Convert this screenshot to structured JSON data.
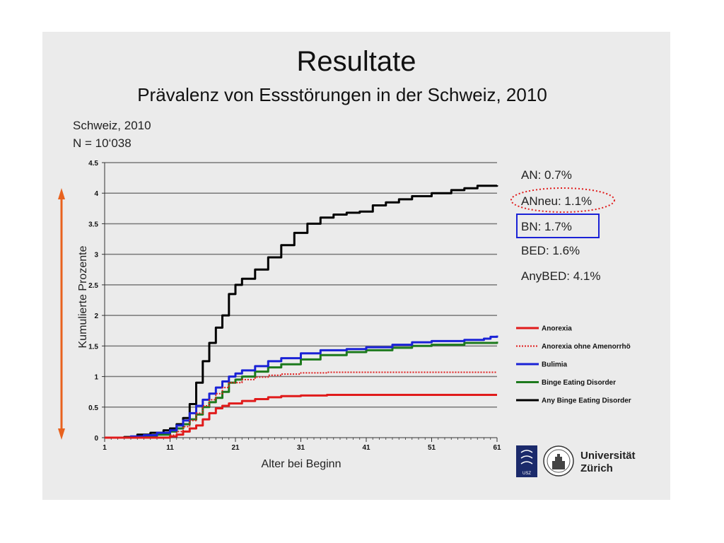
{
  "slide": {
    "title": "Resultate",
    "subtitle": "Prävalenz von Essstörungen in der Schweiz, 2010",
    "meta_line1": "Schweiz, 2010",
    "meta_line2": "N = 10‘038",
    "prevalence": [
      "AN: 0.7%",
      "ANneu: 1.1%",
      "BN: 1.7%",
      "BED: 1.6%",
      "AnyBED: 4.1%"
    ],
    "logos": [
      "USZ",
      "Universität",
      "Zürich"
    ]
  },
  "colors": {
    "anorexia": "#e01b1b",
    "anorexia_no_amenorrhea": "#e01b1b",
    "bulimia": "#1a22d6",
    "bed": "#1d7a1d",
    "any_bed": "#000000",
    "axis_arrow": "#e8621e",
    "ellipse": "#e01b1b",
    "box": "#1a22d6",
    "logo_usz": "#1b2a6b"
  },
  "chart_data": {
    "type": "line",
    "xlabel": "Alter bei Beginn",
    "ylabel": "Kumulierte Prozente",
    "xlim": [
      1,
      61
    ],
    "ylim": [
      0,
      4.5
    ],
    "xticks": [
      1,
      11,
      21,
      31,
      41,
      51,
      61
    ],
    "yticks": [
      0,
      0.5,
      1,
      1.5,
      2,
      2.5,
      3,
      3.5,
      4,
      4.5
    ],
    "ytick_labels": [
      "0",
      "0.5",
      "1",
      "1.5",
      "2",
      "2.5",
      "3",
      "3.5",
      "4",
      "4.5"
    ],
    "grid": true,
    "legend_position": "right",
    "series": [
      {
        "name": "Anorexia",
        "style": "solid",
        "points": [
          [
            1,
            0
          ],
          [
            10,
            0
          ],
          [
            11,
            0.02
          ],
          [
            12,
            0.05
          ],
          [
            13,
            0.1
          ],
          [
            14,
            0.15
          ],
          [
            15,
            0.2
          ],
          [
            16,
            0.3
          ],
          [
            17,
            0.4
          ],
          [
            18,
            0.48
          ],
          [
            19,
            0.52
          ],
          [
            20,
            0.56
          ],
          [
            22,
            0.6
          ],
          [
            24,
            0.63
          ],
          [
            26,
            0.66
          ],
          [
            28,
            0.68
          ],
          [
            31,
            0.69
          ],
          [
            35,
            0.7
          ],
          [
            61,
            0.7
          ]
        ]
      },
      {
        "name": "Anorexia ohne Amenorrhö",
        "style": "dotted",
        "points": [
          [
            1,
            0
          ],
          [
            10,
            0
          ],
          [
            11,
            0.04
          ],
          [
            12,
            0.1
          ],
          [
            13,
            0.18
          ],
          [
            14,
            0.28
          ],
          [
            15,
            0.4
          ],
          [
            16,
            0.52
          ],
          [
            17,
            0.62
          ],
          [
            18,
            0.72
          ],
          [
            19,
            0.82
          ],
          [
            20,
            0.9
          ],
          [
            22,
            0.95
          ],
          [
            24,
            0.99
          ],
          [
            26,
            1.02
          ],
          [
            28,
            1.04
          ],
          [
            31,
            1.06
          ],
          [
            35,
            1.07
          ],
          [
            61,
            1.07
          ]
        ]
      },
      {
        "name": "Bulimia",
        "style": "solid",
        "points": [
          [
            1,
            0
          ],
          [
            5,
            0.02
          ],
          [
            7,
            0.04
          ],
          [
            9,
            0.08
          ],
          [
            11,
            0.12
          ],
          [
            12,
            0.2
          ],
          [
            13,
            0.28
          ],
          [
            14,
            0.4
          ],
          [
            15,
            0.52
          ],
          [
            16,
            0.62
          ],
          [
            17,
            0.72
          ],
          [
            18,
            0.82
          ],
          [
            19,
            0.92
          ],
          [
            20,
            1.0
          ],
          [
            21,
            1.05
          ],
          [
            22,
            1.1
          ],
          [
            24,
            1.17
          ],
          [
            26,
            1.25
          ],
          [
            28,
            1.3
          ],
          [
            31,
            1.38
          ],
          [
            34,
            1.43
          ],
          [
            38,
            1.45
          ],
          [
            41,
            1.48
          ],
          [
            45,
            1.52
          ],
          [
            48,
            1.56
          ],
          [
            51,
            1.58
          ],
          [
            56,
            1.6
          ],
          [
            59,
            1.62
          ],
          [
            60,
            1.65
          ],
          [
            61,
            1.67
          ]
        ]
      },
      {
        "name": "Binge Eating Disorder",
        "style": "solid",
        "points": [
          [
            1,
            0
          ],
          [
            5,
            0.01
          ],
          [
            7,
            0.03
          ],
          [
            9,
            0.05
          ],
          [
            11,
            0.1
          ],
          [
            12,
            0.15
          ],
          [
            13,
            0.22
          ],
          [
            14,
            0.3
          ],
          [
            15,
            0.38
          ],
          [
            16,
            0.5
          ],
          [
            17,
            0.58
          ],
          [
            18,
            0.65
          ],
          [
            19,
            0.75
          ],
          [
            20,
            0.9
          ],
          [
            21,
            0.95
          ],
          [
            22,
            1.0
          ],
          [
            24,
            1.08
          ],
          [
            26,
            1.15
          ],
          [
            28,
            1.2
          ],
          [
            31,
            1.28
          ],
          [
            34,
            1.35
          ],
          [
            38,
            1.4
          ],
          [
            41,
            1.43
          ],
          [
            45,
            1.47
          ],
          [
            48,
            1.5
          ],
          [
            51,
            1.52
          ],
          [
            56,
            1.55
          ],
          [
            61,
            1.57
          ]
        ]
      },
      {
        "name": "Any Binge Eating Disorder",
        "style": "solid",
        "points": [
          [
            1,
            0
          ],
          [
            4,
            0.01
          ],
          [
            6,
            0.05
          ],
          [
            8,
            0.08
          ],
          [
            10,
            0.12
          ],
          [
            11,
            0.15
          ],
          [
            12,
            0.22
          ],
          [
            13,
            0.32
          ],
          [
            14,
            0.55
          ],
          [
            15,
            0.9
          ],
          [
            16,
            1.25
          ],
          [
            17,
            1.55
          ],
          [
            18,
            1.8
          ],
          [
            19,
            2.0
          ],
          [
            20,
            2.35
          ],
          [
            21,
            2.5
          ],
          [
            22,
            2.6
          ],
          [
            24,
            2.75
          ],
          [
            26,
            2.95
          ],
          [
            28,
            3.15
          ],
          [
            30,
            3.35
          ],
          [
            32,
            3.5
          ],
          [
            34,
            3.6
          ],
          [
            36,
            3.65
          ],
          [
            38,
            3.68
          ],
          [
            40,
            3.7
          ],
          [
            42,
            3.8
          ],
          [
            44,
            3.85
          ],
          [
            46,
            3.9
          ],
          [
            48,
            3.95
          ],
          [
            51,
            4.0
          ],
          [
            54,
            4.05
          ],
          [
            56,
            4.08
          ],
          [
            58,
            4.12
          ],
          [
            61,
            4.13
          ]
        ]
      }
    ]
  }
}
